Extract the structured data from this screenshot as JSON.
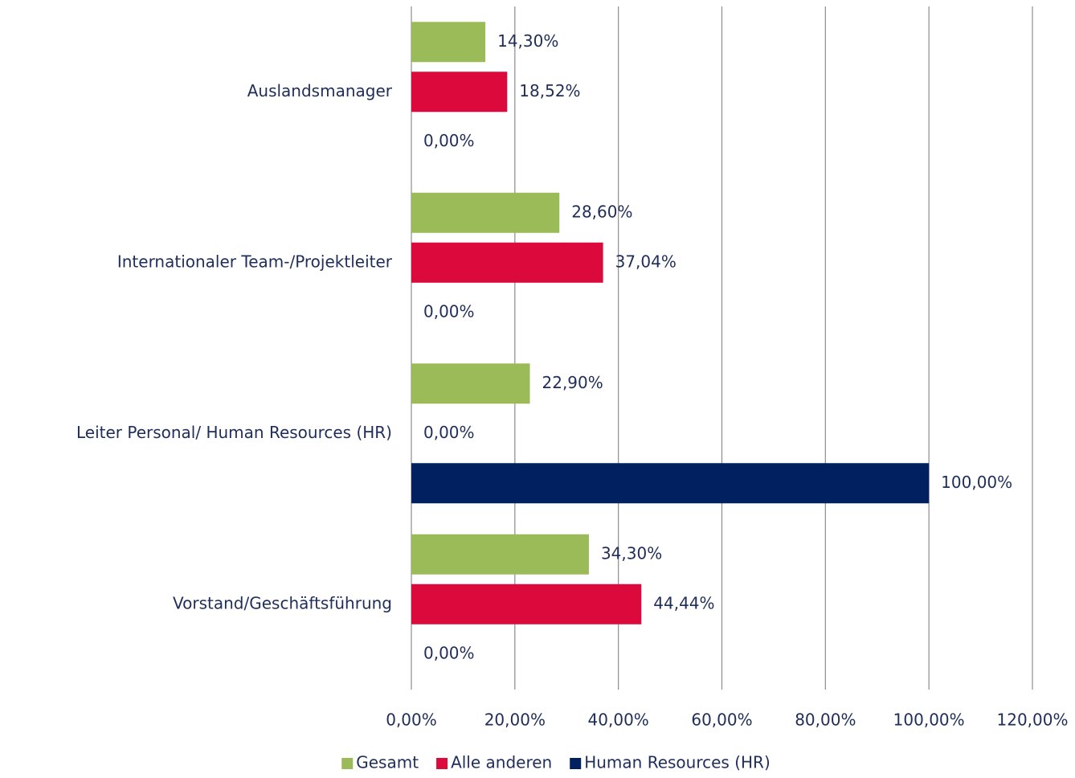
{
  "chart_data": {
    "type": "hbar",
    "categories": [
      "Auslandsmanager",
      "Internationaler Team-/Projektleiter",
      "Leiter Personal/ Human Resources (HR)",
      "Vorstand/Geschäftsführung"
    ],
    "series": [
      {
        "name": "Gesamt",
        "color": "#9bbb59",
        "values": [
          14.3,
          28.6,
          22.9,
          34.3
        ],
        "value_labels": [
          "14,30%",
          "28,60%",
          "22,90%",
          "34,30%"
        ]
      },
      {
        "name": "Alle anderen",
        "color": "#dc0a3c",
        "values": [
          18.52,
          37.04,
          0,
          44.44
        ],
        "value_labels": [
          "18,52%",
          "37,04%",
          "0,00%",
          "44,44%"
        ]
      },
      {
        "name": "Human Resources (HR)",
        "color": "#002060",
        "values": [
          0,
          0,
          100,
          0
        ],
        "value_labels": [
          "0,00%",
          "0,00%",
          "100,00%",
          "0,00%"
        ]
      }
    ],
    "xlim": [
      0,
      120
    ],
    "xticks": [
      {
        "value": 0,
        "label": "0,00%"
      },
      {
        "value": 20,
        "label": "20,00%"
      },
      {
        "value": 40,
        "label": "40,00%"
      },
      {
        "value": 60,
        "label": "60,00%"
      },
      {
        "value": 80,
        "label": "80,00%"
      },
      {
        "value": 100,
        "label": "100,00%"
      },
      {
        "value": 120,
        "label": "120,00%"
      }
    ],
    "grid": true,
    "legend": "bottom"
  }
}
